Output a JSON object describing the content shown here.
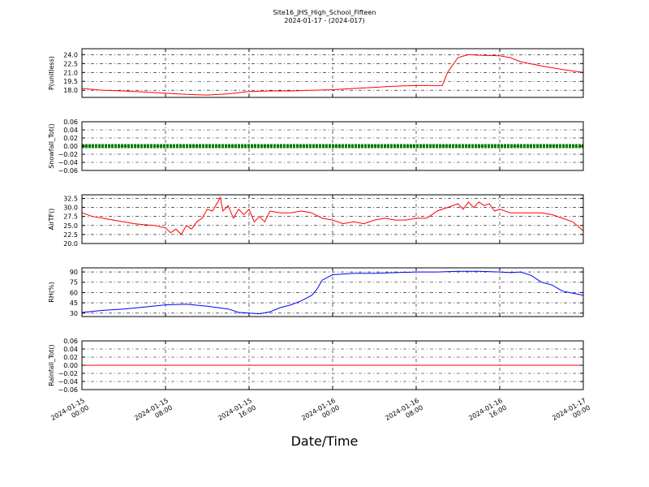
{
  "figure": {
    "title": "Site16_JHS_High_School_Fifteen",
    "subtitle": "2024-01-17 - (2024-017)",
    "xlabel": "Date/Time"
  },
  "chart_data": [
    {
      "type": "line",
      "ylabel": "P(unitless)",
      "ylim": [
        16.8,
        25.0
      ],
      "yticks": [
        18.0,
        19.5,
        21.0,
        22.5,
        24.0
      ],
      "ytick_labels": [
        "18.0",
        "19.5",
        "21.0",
        "22.5",
        "24.0"
      ],
      "grid": true,
      "series": [
        {
          "color": "#ff0000",
          "x": [
            "2024-01-15 00:00",
            "2024-01-15 02:00",
            "2024-01-15 04:00",
            "2024-01-15 06:00",
            "2024-01-15 08:00",
            "2024-01-15 10:00",
            "2024-01-15 12:00",
            "2024-01-15 14:00",
            "2024-01-15 16:00",
            "2024-01-15 18:00",
            "2024-01-15 20:00",
            "2024-01-15 22:00",
            "2024-01-16 00:00",
            "2024-01-16 02:00",
            "2024-01-16 04:00",
            "2024-01-16 06:00",
            "2024-01-16 08:00",
            "2024-01-16 10:00",
            "2024-01-16 10:30",
            "2024-01-16 11:00",
            "2024-01-16 12:00",
            "2024-01-16 13:00",
            "2024-01-16 14:00",
            "2024-01-16 16:00",
            "2024-01-16 17:00",
            "2024-01-16 18:00",
            "2024-01-16 20:00",
            "2024-01-16 22:00",
            "2024-01-17 00:00"
          ],
          "y": [
            18.3,
            18.0,
            17.9,
            17.7,
            17.5,
            17.3,
            17.2,
            17.4,
            17.8,
            17.9,
            17.9,
            18.0,
            18.1,
            18.3,
            18.5,
            18.7,
            18.8,
            18.8,
            18.8,
            21.0,
            23.5,
            24.0,
            23.9,
            23.8,
            23.5,
            22.8,
            22.1,
            21.5,
            21.0
          ]
        }
      ]
    },
    {
      "type": "line",
      "ylabel": "Snowfall_Tot()",
      "ylim": [
        -0.06,
        0.06
      ],
      "yticks": [
        -0.06,
        -0.04,
        -0.02,
        0.0,
        0.02,
        0.04,
        0.06
      ],
      "ytick_labels": [
        "−0.06",
        "−0.04",
        "−0.02",
        "0.00",
        "0.02",
        "0.04",
        "0.06"
      ],
      "grid": true,
      "series": [
        {
          "color": "#008000",
          "style": "thick-dotted",
          "x": [
            "2024-01-15 00:00",
            "2024-01-17 00:00"
          ],
          "y": [
            0.0,
            0.0
          ]
        }
      ]
    },
    {
      "type": "line",
      "ylabel": "AirTF()",
      "ylim": [
        20.0,
        33.5
      ],
      "yticks": [
        20.0,
        22.5,
        25.0,
        27.5,
        30.0,
        32.5
      ],
      "ytick_labels": [
        "20.0",
        "22.5",
        "25.0",
        "27.5",
        "30.0",
        "32.5"
      ],
      "grid": true,
      "series": [
        {
          "color": "#ff0000",
          "x": [
            "2024-01-15 00:00",
            "2024-01-15 01:00",
            "2024-01-15 02:00",
            "2024-01-15 03:00",
            "2024-01-15 04:00",
            "2024-01-15 05:00",
            "2024-01-15 06:00",
            "2024-01-15 07:00",
            "2024-01-15 08:00",
            "2024-01-15 08:30",
            "2024-01-15 09:00",
            "2024-01-15 09:30",
            "2024-01-15 10:00",
            "2024-01-15 10:30",
            "2024-01-15 11:00",
            "2024-01-15 11:30",
            "2024-01-15 12:00",
            "2024-01-15 12:30",
            "2024-01-15 13:00",
            "2024-01-15 13:15",
            "2024-01-15 13:30",
            "2024-01-15 14:00",
            "2024-01-15 14:30",
            "2024-01-15 15:00",
            "2024-01-15 15:30",
            "2024-01-15 16:00",
            "2024-01-15 16:30",
            "2024-01-15 17:00",
            "2024-01-15 17:30",
            "2024-01-15 18:00",
            "2024-01-15 19:00",
            "2024-01-15 20:00",
            "2024-01-15 21:00",
            "2024-01-15 22:00",
            "2024-01-15 23:00",
            "2024-01-16 00:00",
            "2024-01-16 01:00",
            "2024-01-16 02:00",
            "2024-01-16 03:00",
            "2024-01-16 04:00",
            "2024-01-16 05:00",
            "2024-01-16 06:00",
            "2024-01-16 07:00",
            "2024-01-16 08:00",
            "2024-01-16 09:00",
            "2024-01-16 10:00",
            "2024-01-16 11:00",
            "2024-01-16 12:00",
            "2024-01-16 12:30",
            "2024-01-16 13:00",
            "2024-01-16 13:30",
            "2024-01-16 14:00",
            "2024-01-16 14:30",
            "2024-01-16 15:00",
            "2024-01-16 15:30",
            "2024-01-16 16:00",
            "2024-01-16 17:00",
            "2024-01-16 18:00",
            "2024-01-16 19:00",
            "2024-01-16 20:00",
            "2024-01-16 21:00",
            "2024-01-16 22:00",
            "2024-01-16 23:00",
            "2024-01-17 00:00"
          ],
          "y": [
            28.5,
            27.5,
            27.0,
            26.5,
            26.0,
            25.5,
            25.2,
            25.0,
            24.3,
            23.0,
            24.0,
            22.5,
            25.0,
            24.0,
            26.0,
            27.0,
            29.5,
            29.0,
            31.5,
            32.8,
            29.0,
            30.5,
            27.0,
            29.5,
            28.0,
            29.5,
            26.0,
            27.5,
            26.0,
            29.0,
            28.5,
            28.5,
            29.0,
            28.5,
            27.0,
            26.5,
            25.5,
            26.0,
            25.5,
            26.5,
            27.0,
            26.5,
            26.5,
            27.0,
            27.0,
            29.0,
            30.0,
            31.0,
            29.5,
            31.5,
            30.0,
            31.5,
            30.5,
            31.0,
            29.0,
            29.5,
            28.5,
            28.5,
            28.5,
            28.5,
            28.0,
            27.0,
            26.0,
            23.5
          ]
        }
      ]
    },
    {
      "type": "line",
      "ylabel": "RH(%)",
      "ylim": [
        25,
        96
      ],
      "yticks": [
        30,
        45,
        60,
        75,
        90
      ],
      "ytick_labels": [
        "30",
        "45",
        "60",
        "75",
        "90"
      ],
      "grid": true,
      "series": [
        {
          "color": "#0000ff",
          "x": [
            "2024-01-15 00:00",
            "2024-01-15 02:00",
            "2024-01-15 04:00",
            "2024-01-15 06:00",
            "2024-01-15 08:00",
            "2024-01-15 10:00",
            "2024-01-15 12:00",
            "2024-01-15 14:00",
            "2024-01-15 15:00",
            "2024-01-15 16:00",
            "2024-01-15 17:00",
            "2024-01-15 18:00",
            "2024-01-15 19:00",
            "2024-01-15 20:00",
            "2024-01-15 21:00",
            "2024-01-15 22:00",
            "2024-01-15 22:30",
            "2024-01-15 23:00",
            "2024-01-16 00:00",
            "2024-01-16 02:00",
            "2024-01-16 04:00",
            "2024-01-16 06:00",
            "2024-01-16 08:00",
            "2024-01-16 10:00",
            "2024-01-16 12:00",
            "2024-01-16 14:00",
            "2024-01-16 16:00",
            "2024-01-16 17:00",
            "2024-01-16 18:00",
            "2024-01-16 19:00",
            "2024-01-16 20:00",
            "2024-01-16 21:00",
            "2024-01-16 22:00",
            "2024-01-16 23:00",
            "2024-01-17 00:00"
          ],
          "y": [
            31,
            34,
            36,
            39,
            42,
            43,
            40,
            36,
            31,
            30,
            29,
            32,
            38,
            42,
            48,
            56,
            65,
            78,
            86,
            88,
            88,
            89,
            90,
            90,
            91,
            91,
            90,
            89,
            90,
            85,
            75,
            71,
            62,
            59,
            56
          ]
        }
      ]
    },
    {
      "type": "line",
      "ylabel": "Rainfall_Tot()",
      "ylim": [
        -0.06,
        0.06
      ],
      "yticks": [
        -0.06,
        -0.04,
        -0.02,
        0.0,
        0.02,
        0.04,
        0.06
      ],
      "ytick_labels": [
        "−0.06",
        "−0.04",
        "−0.02",
        "0.00",
        "0.02",
        "0.04",
        "0.06"
      ],
      "grid": true,
      "series": [
        {
          "color": "#ff0000",
          "x": [
            "2024-01-15 00:00",
            "2024-01-17 00:00"
          ],
          "y": [
            0.0,
            0.0
          ]
        }
      ]
    }
  ],
  "x_axis": {
    "range": [
      "2024-01-15 00:00",
      "2024-01-17 00:00"
    ],
    "ticks": [
      {
        "value": "2024-01-15 00:00",
        "line1": "2024-01-15",
        "line2": "00:00"
      },
      {
        "value": "2024-01-15 08:00",
        "line1": "2024-01-15",
        "line2": "08:00"
      },
      {
        "value": "2024-01-15 16:00",
        "line1": "2024-01-15",
        "line2": "16:00"
      },
      {
        "value": "2024-01-16 00:00",
        "line1": "2024-01-16",
        "line2": "00:00"
      },
      {
        "value": "2024-01-16 08:00",
        "line1": "2024-01-16",
        "line2": "08:00"
      },
      {
        "value": "2024-01-16 16:00",
        "line1": "2024-01-16",
        "line2": "16:00"
      },
      {
        "value": "2024-01-17 00:00",
        "line1": "2024-01-17",
        "line2": "00:00"
      }
    ]
  }
}
